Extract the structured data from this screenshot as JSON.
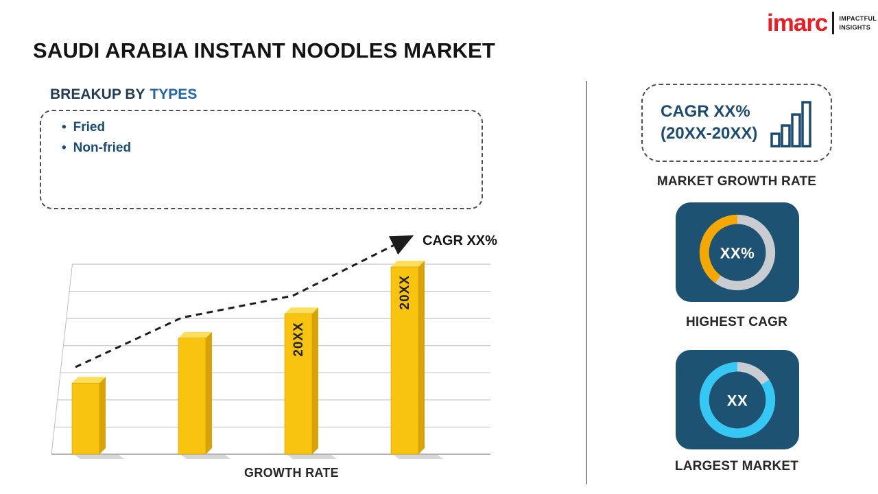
{
  "header": {
    "title": "SAUDI ARABIA INSTANT NOODLES MARKET",
    "logo": {
      "brand": "imarc",
      "tagline_line1": "IMPACTFUL",
      "tagline_line2": "INSIGHTS",
      "brand_color": "#EC1C24"
    }
  },
  "breakup": {
    "heading_prefix": "BREAKUP BY",
    "heading_highlight": "TYPES",
    "bullet": "•",
    "items": [
      "Fried",
      "Non-fried"
    ]
  },
  "chart_data": {
    "type": "bar",
    "categories": [
      "",
      "",
      "20XX",
      "20XX"
    ],
    "values": [
      38,
      62,
      75,
      100
    ],
    "ylim": [
      0,
      110
    ],
    "grid": true,
    "legend": "none",
    "xlabel": "GROWTH RATE",
    "trend_label": "CAGR XX%",
    "bar_color": "#F8C410",
    "bar_side_color": "#D9A308",
    "bar_top_color": "#FFDE5C"
  },
  "sidebar": {
    "growth_card": {
      "line1": "CAGR XX%",
      "line2": "(20XX-20XX)",
      "caption": "MARKET GROWTH RATE"
    },
    "highest_cagr": {
      "value": "XX%",
      "caption": "HIGHEST CAGR",
      "accent_color": "#F5A800",
      "ring_percent": 40
    },
    "largest_market": {
      "value": "XX",
      "caption": "LARGEST MARKET",
      "accent_color": "#35C8F5",
      "ring_percent": 84
    },
    "card_bg": "#1D5273"
  }
}
